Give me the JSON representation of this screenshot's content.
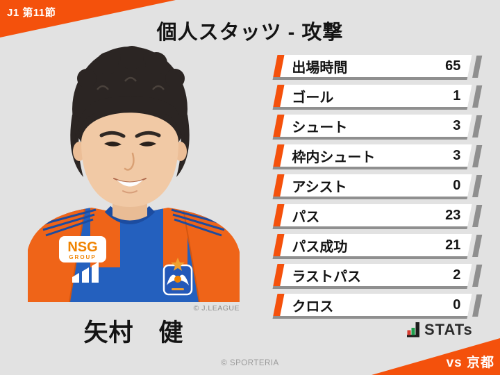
{
  "header": {
    "badge": "J1 第11節",
    "title": "個人スタッツ - 攻撃"
  },
  "player": {
    "name": "矢村　健",
    "photo_credit": "© J.LEAGUE",
    "jersey_sponsor": "NSG",
    "jersey_sponsor_sub": "GROUP"
  },
  "stats": [
    {
      "label": "出場時間",
      "value": "65"
    },
    {
      "label": "ゴール",
      "value": "1"
    },
    {
      "label": "シュート",
      "value": "3"
    },
    {
      "label": "枠内シュート",
      "value": "3"
    },
    {
      "label": "アシスト",
      "value": "0"
    },
    {
      "label": "パス",
      "value": "23"
    },
    {
      "label": "パス成功",
      "value": "21"
    },
    {
      "label": "ラストパス",
      "value": "2"
    },
    {
      "label": "クロス",
      "value": "0"
    }
  ],
  "footer": {
    "logo_text": "STATs",
    "site_credit": "© SPORTERIA",
    "opponent": "vs 京都"
  },
  "colors": {
    "accent": "#F4510C",
    "background": "#E2E2E2",
    "row_shadow": "#8F8F8F",
    "logo_bar_red": "#D63B2F",
    "logo_bar_green": "#1F9E4B",
    "logo_bar_black": "#1D1D1D"
  },
  "chart_data": {
    "type": "table",
    "title": "個人スタッツ - 攻撃",
    "subtitle": "J1 第11節 vs 京都 — 矢村 健",
    "categories": [
      "出場時間",
      "ゴール",
      "シュート",
      "枠内シュート",
      "アシスト",
      "パス",
      "パス成功",
      "ラストパス",
      "クロス"
    ],
    "values": [
      65,
      1,
      3,
      3,
      0,
      23,
      21,
      2,
      0
    ],
    "legend_position": "none",
    "grid": false
  }
}
